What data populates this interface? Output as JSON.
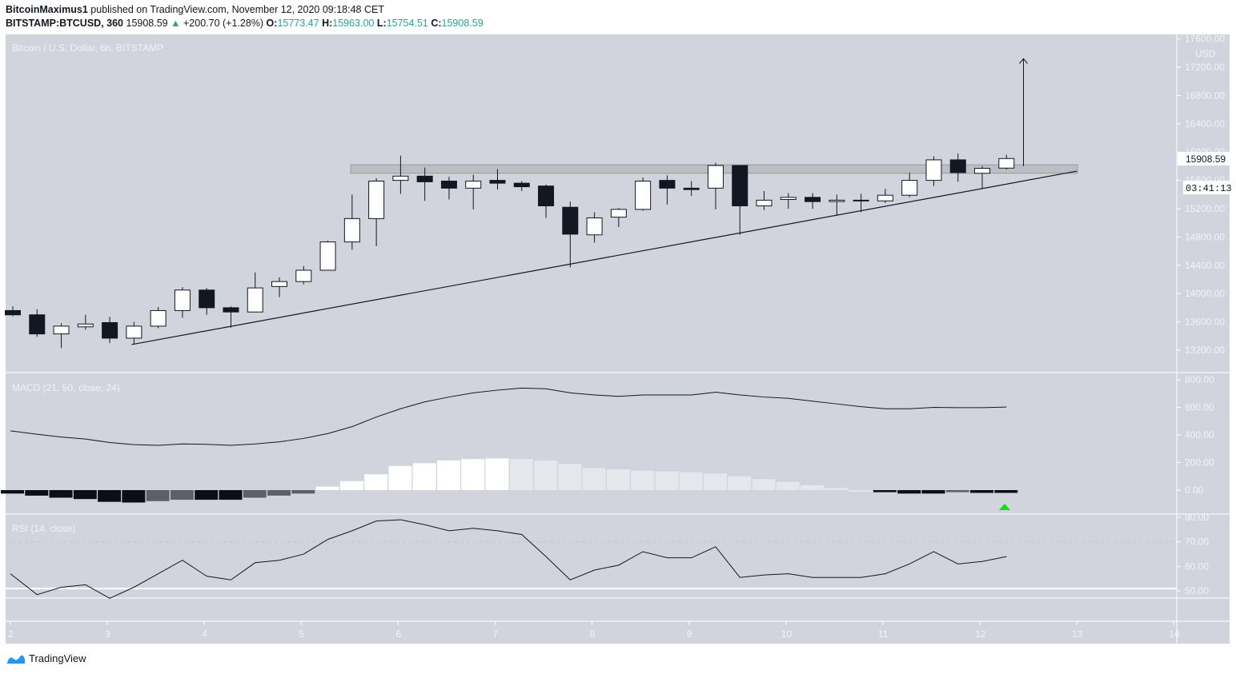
{
  "header": {
    "author": "BitcoinMaximus1",
    "published": "published on TradingView.com, November 12, 2020 09:18:48 CET",
    "symbol": "BITSTAMP:BTCUSD, 360",
    "last": "15908.59",
    "change": "+200.70 (+1.28%)",
    "o_label": "O:",
    "o": "15773.47",
    "h_label": "H:",
    "h": "15963.00",
    "l_label": "L:",
    "l": "15754.51",
    "c_label": "C:",
    "c": "15908.59"
  },
  "brand": "TradingView",
  "colors": {
    "bg": "#d1d4dc",
    "up": "#ffffff",
    "down": "#131722",
    "axis_text": "#f0f3fa",
    "signal": "#00e600"
  },
  "chart_data": {
    "type": "candlestick",
    "title": "Bitcoin / U.S. Dollar, 6h, BITSTAMP",
    "price_axis": {
      "unit": "USD",
      "ticks": [
        13200,
        13600,
        14000,
        14400,
        14800,
        15200,
        15600,
        16000,
        16400,
        16800,
        17200,
        17600
      ],
      "ylim": [
        12900,
        17700
      ]
    },
    "last_price_label": "15908.59",
    "countdown_label": "03:41:13",
    "x_ticks": [
      "2",
      "3",
      "4",
      "5",
      "6",
      "7",
      "8",
      "9",
      "10",
      "11",
      "12",
      "13",
      "14"
    ],
    "x_start_day": 2,
    "interval_days": 0.25,
    "candles": [
      [
        13760,
        13820,
        13680,
        13700
      ],
      [
        13700,
        13780,
        13390,
        13430
      ],
      [
        13430,
        13580,
        13230,
        13540
      ],
      [
        13530,
        13700,
        13490,
        13570
      ],
      [
        13590,
        13670,
        13300,
        13370
      ],
      [
        13370,
        13600,
        13290,
        13540
      ],
      [
        13540,
        13810,
        13510,
        13760
      ],
      [
        13760,
        14090,
        13660,
        14050
      ],
      [
        14050,
        14080,
        13700,
        13800
      ],
      [
        13800,
        13820,
        13520,
        13740
      ],
      [
        13740,
        14300,
        13740,
        14080
      ],
      [
        14100,
        14230,
        13950,
        14170
      ],
      [
        14170,
        14390,
        14130,
        14330
      ],
      [
        14330,
        14750,
        14330,
        14730
      ],
      [
        14730,
        15400,
        14620,
        15060
      ],
      [
        15060,
        15630,
        14670,
        15590
      ],
      [
        15600,
        15950,
        15410,
        15660
      ],
      [
        15660,
        15780,
        15310,
        15580
      ],
      [
        15590,
        15650,
        15330,
        15490
      ],
      [
        15490,
        15680,
        15190,
        15590
      ],
      [
        15600,
        15760,
        15470,
        15560
      ],
      [
        15560,
        15590,
        15450,
        15510
      ],
      [
        15520,
        15540,
        15070,
        15240
      ],
      [
        15220,
        15300,
        14370,
        14840
      ],
      [
        14830,
        15150,
        14720,
        15070
      ],
      [
        15080,
        15210,
        14940,
        15190
      ],
      [
        15190,
        15640,
        15170,
        15590
      ],
      [
        15600,
        15670,
        15260,
        15490
      ],
      [
        15490,
        15590,
        15380,
        15470
      ],
      [
        15490,
        15850,
        15190,
        15810
      ],
      [
        15810,
        15810,
        14830,
        15240
      ],
      [
        15240,
        15450,
        15180,
        15320
      ],
      [
        15330,
        15420,
        15200,
        15360
      ],
      [
        15360,
        15420,
        15200,
        15300
      ],
      [
        15300,
        15400,
        15100,
        15320
      ],
      [
        15310,
        15410,
        15150,
        15320
      ],
      [
        15310,
        15480,
        15280,
        15390
      ],
      [
        15390,
        15710,
        15360,
        15600
      ],
      [
        15600,
        15940,
        15520,
        15890
      ],
      [
        15890,
        15980,
        15580,
        15710
      ],
      [
        15700,
        15800,
        15480,
        15770
      ],
      [
        15773.47,
        15963,
        15754.51,
        15908.59
      ]
    ],
    "resistance_zone": [
      15700,
      15820
    ],
    "trendline": {
      "from": [
        3.25,
        13280
      ],
      "to": [
        13,
        15730
      ]
    },
    "arrow": {
      "day": 12.45,
      "from": 15800,
      "to": 17320
    },
    "macd": {
      "label": "MACD (21, 50, close, 24)",
      "ticks": [
        0,
        200,
        400,
        600,
        800
      ],
      "line": [
        430,
        405,
        385,
        370,
        345,
        330,
        325,
        335,
        332,
        325,
        335,
        350,
        375,
        410,
        460,
        530,
        590,
        640,
        675,
        705,
        725,
        740,
        735,
        705,
        690,
        680,
        690,
        690,
        690,
        710,
        690,
        675,
        665,
        645,
        625,
        605,
        590,
        590,
        600,
        598,
        598,
        602
      ],
      "histogram": [
        -25,
        -40,
        -55,
        -65,
        -85,
        -90,
        -80,
        -70,
        -70,
        -70,
        -55,
        -40,
        -25,
        25,
        65,
        115,
        175,
        195,
        215,
        225,
        230,
        225,
        215,
        190,
        160,
        150,
        140,
        135,
        130,
        120,
        100,
        80,
        60,
        35,
        15,
        0,
        -15,
        -25,
        -25,
        -15,
        -20,
        -20
      ]
    },
    "rsi": {
      "label": "RSI (14, close)",
      "ticks": [
        50,
        60,
        70,
        80
      ],
      "values": [
        57,
        48.5,
        51.5,
        52.5,
        47,
        51.5,
        57,
        62.5,
        56,
        54.5,
        61.5,
        62.5,
        65,
        71,
        74.5,
        78.5,
        79,
        77,
        74.5,
        75.5,
        74.5,
        73,
        64,
        54.5,
        58.5,
        60.5,
        66,
        63.5,
        63.5,
        68,
        55.5,
        56.5,
        57,
        55.5,
        55.5,
        55.5,
        57,
        61,
        66,
        61,
        62,
        64
      ]
    }
  }
}
